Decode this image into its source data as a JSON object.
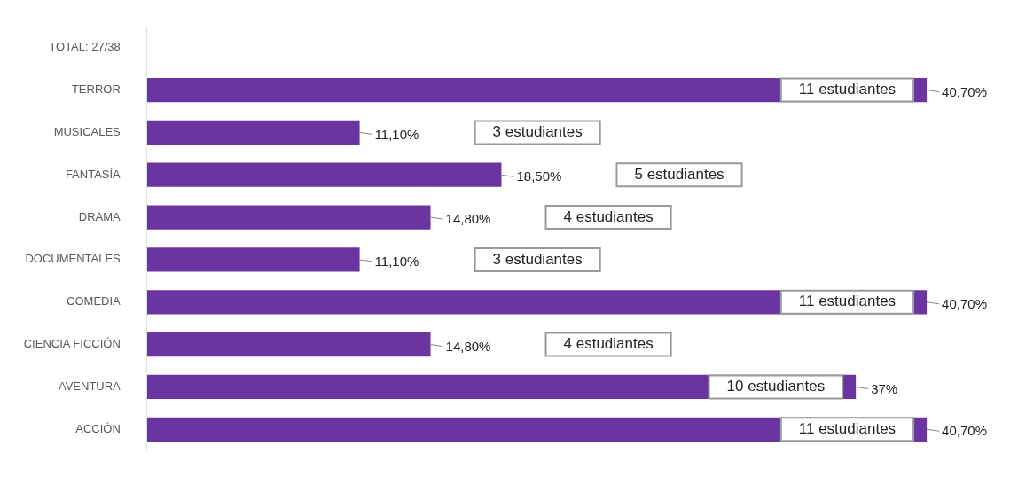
{
  "chart_data": {
    "type": "bar",
    "orientation": "horizontal",
    "categories": [
      "TOTAL: 27/38",
      "TERROR",
      "MUSICALES",
      "FANTASÍA",
      "DRAMA",
      "DOCUMENTALES",
      "COMEDIA",
      "CIENCIA FICCIÓN",
      "AVENTURA",
      "ACCIÓN"
    ],
    "values": [
      null,
      40.7,
      11.1,
      18.5,
      14.8,
      11.1,
      40.7,
      14.8,
      37,
      40.7
    ],
    "value_labels": [
      null,
      "40,70%",
      "11,10%",
      "18,50%",
      "14,80%",
      "11,10%",
      "40,70%",
      "14,80%",
      "37%",
      "40,70%"
    ],
    "color": "#6a35a0",
    "tick_labels": "y",
    "grid": false,
    "legend": false,
    "annotations": [
      "11 estudiantes",
      "3 estudiantes",
      "5 estudiantes",
      "4 estudiantes",
      "3 estudiantes",
      "11 estudiantes",
      "4 estudiantes",
      "10 estudiantes",
      "11 estudiantes"
    ]
  }
}
